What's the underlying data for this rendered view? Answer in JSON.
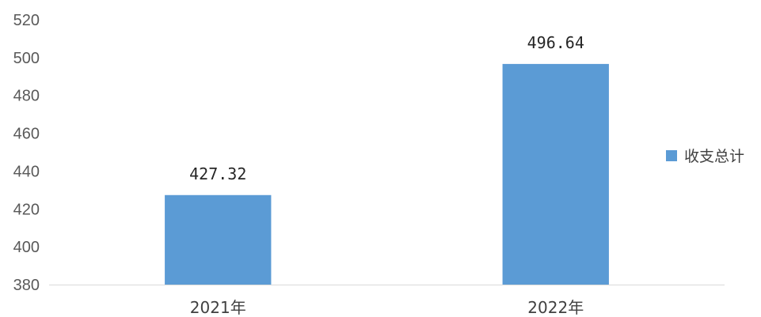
{
  "chart_data": {
    "type": "bar",
    "categories": [
      "2021年",
      "2022年"
    ],
    "series": [
      {
        "name": "收支总计",
        "values": [
          427.32,
          496.64
        ]
      }
    ],
    "data_labels": [
      "427.32",
      "496.64"
    ],
    "ylim": [
      380,
      520
    ],
    "yticks": [
      380,
      400,
      420,
      440,
      460,
      480,
      500,
      520
    ],
    "grid": false,
    "legend_position": "right",
    "bar_color": "#5B9BD5",
    "axis_color": "#D9D9D9"
  }
}
